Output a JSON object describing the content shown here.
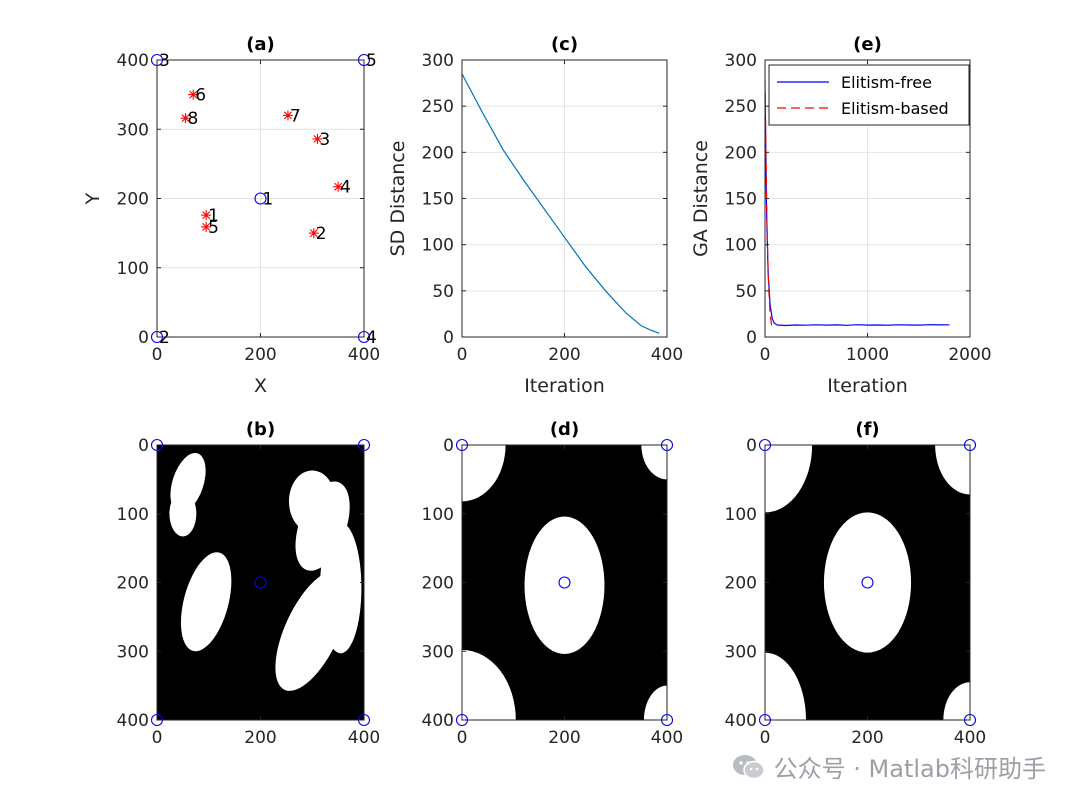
{
  "watermark": "公众号 · Matlab科研助手",
  "chart_data": [
    {
      "id": "a",
      "title": "(a)",
      "type": "scatter",
      "xlabel": "X",
      "ylabel": "Y",
      "xlim": [
        0,
        400
      ],
      "ylim": [
        0,
        400
      ],
      "xticks": [
        0,
        200,
        400
      ],
      "yticks": [
        0,
        100,
        200,
        300,
        400
      ],
      "grid": true,
      "series": [
        {
          "marker": "circle",
          "color": "#0000ff",
          "points": [
            {
              "x": 0,
              "y": 400,
              "label": "3"
            },
            {
              "x": 0,
              "y": 0,
              "label": "2"
            },
            {
              "x": 400,
              "y": 400,
              "label": "5"
            },
            {
              "x": 400,
              "y": 0,
              "label": "4"
            },
            {
              "x": 200,
              "y": 200,
              "label": "1"
            }
          ]
        },
        {
          "marker": "asterisk",
          "color": "#ff0000",
          "points": [
            {
              "x": 70,
              "y": 350,
              "label": "6"
            },
            {
              "x": 55,
              "y": 316,
              "label": "8"
            },
            {
              "x": 253,
              "y": 320,
              "label": "7"
            },
            {
              "x": 310,
              "y": 286,
              "label": "3"
            },
            {
              "x": 350,
              "y": 217,
              "label": "4"
            },
            {
              "x": 95,
              "y": 176,
              "label": "1"
            },
            {
              "x": 95,
              "y": 159,
              "label": "5"
            },
            {
              "x": 303,
              "y": 150,
              "label": "2"
            }
          ]
        }
      ]
    },
    {
      "id": "c",
      "title": "(c)",
      "type": "line",
      "xlabel": "Iteration",
      "ylabel": "SD Distance",
      "xlim": [
        0,
        400
      ],
      "ylim": [
        0,
        300
      ],
      "xticks": [
        0,
        200,
        400
      ],
      "yticks": [
        0,
        50,
        100,
        150,
        200,
        250,
        300
      ],
      "grid": true,
      "series": [
        {
          "color": "#0072bd",
          "x": [
            0,
            40,
            80,
            120,
            160,
            200,
            240,
            280,
            320,
            350,
            370,
            385
          ],
          "y": [
            285,
            243,
            203,
            170,
            139,
            108,
            77,
            50,
            26,
            12,
            7,
            4
          ]
        }
      ]
    },
    {
      "id": "e",
      "title": "(e)",
      "type": "line",
      "xlabel": "Iteration",
      "ylabel": "GA Distance",
      "xlim": [
        0,
        2000
      ],
      "ylim": [
        0,
        300
      ],
      "xticks": [
        0,
        1000,
        2000
      ],
      "yticks": [
        0,
        50,
        100,
        150,
        200,
        250,
        300
      ],
      "grid": true,
      "legend": "top-left",
      "series": [
        {
          "name": "Elitism-free",
          "color": "#0000ff",
          "dash": "solid",
          "x": [
            0,
            5,
            15,
            30,
            50,
            70,
            90,
            120,
            200,
            300,
            400,
            500,
            600,
            700,
            800,
            900,
            1000,
            1100,
            1200,
            1300,
            1400,
            1500,
            1600,
            1700,
            1800
          ],
          "y": [
            270,
            230,
            140,
            70,
            35,
            20,
            15,
            13,
            12.5,
            13,
            12.8,
            13.2,
            12.9,
            13.1,
            12.7,
            13.3,
            12.9,
            13.0,
            12.8,
            13.2,
            13.0,
            12.9,
            13.3,
            13.1,
            13.2
          ]
        },
        {
          "name": "Elitism-based",
          "color": "#ff0000",
          "dash": "dashed",
          "x": [
            0,
            10,
            20,
            35,
            50,
            65,
            80
          ],
          "y": [
            280,
            200,
            120,
            55,
            25,
            12,
            8
          ]
        }
      ]
    },
    {
      "id": "b",
      "title": "(b)",
      "type": "heatmap",
      "xlim": [
        0,
        400
      ],
      "ylim": [
        0,
        400
      ],
      "yreversed": true,
      "xticks": [
        0,
        200,
        400
      ],
      "yticks": [
        0,
        100,
        200,
        300,
        400
      ],
      "background": "#000000",
      "region_color": "#ffffff",
      "regions": [
        {
          "cx": 60,
          "cy": 55,
          "rx": 30,
          "ry": 45,
          "rot": 18
        },
        {
          "cx": 50,
          "cy": 100,
          "rx": 26,
          "ry": 33,
          "rot": 0
        },
        {
          "cx": 95,
          "cy": 228,
          "rx": 43,
          "ry": 74,
          "rot": 15
        },
        {
          "cx": 300,
          "cy": 82,
          "rx": 45,
          "ry": 45,
          "rot": 0
        },
        {
          "cx": 320,
          "cy": 118,
          "rx": 45,
          "ry": 68,
          "rot": 20
        },
        {
          "cx": 300,
          "cy": 270,
          "rx": 52,
          "ry": 95,
          "rot": 25
        },
        {
          "cx": 355,
          "cy": 208,
          "rx": 40,
          "ry": 95,
          "rot": 0
        }
      ],
      "markers": [
        {
          "x": 0,
          "y": 0
        },
        {
          "x": 400,
          "y": 0
        },
        {
          "x": 200,
          "y": 200
        },
        {
          "x": 0,
          "y": 400
        },
        {
          "x": 400,
          "y": 400
        }
      ]
    },
    {
      "id": "d",
      "title": "(d)",
      "type": "heatmap",
      "xlim": [
        0,
        400
      ],
      "ylim": [
        0,
        400
      ],
      "yreversed": true,
      "xticks": [
        0,
        200,
        400
      ],
      "yticks": [
        0,
        100,
        200,
        300,
        400
      ],
      "background": "#000000",
      "region_color": "#ffffff",
      "regions": [
        {
          "cx": 200,
          "cy": 204,
          "rx": 78,
          "ry": 100,
          "rot": 0
        },
        {
          "cx": 0,
          "cy": 0,
          "rx": 85,
          "ry": 82,
          "rot": 0
        },
        {
          "cx": 400,
          "cy": 0,
          "rx": 50,
          "ry": 50,
          "rot": 0
        },
        {
          "cx": 0,
          "cy": 400,
          "rx": 105,
          "ry": 102,
          "rot": 0
        },
        {
          "cx": 400,
          "cy": 400,
          "rx": 45,
          "ry": 50,
          "rot": 0
        }
      ],
      "markers": [
        {
          "x": 0,
          "y": 0
        },
        {
          "x": 400,
          "y": 0
        },
        {
          "x": 200,
          "y": 200
        },
        {
          "x": 0,
          "y": 400
        },
        {
          "x": 400,
          "y": 400
        }
      ]
    },
    {
      "id": "f",
      "title": "(f)",
      "type": "heatmap",
      "xlim": [
        0,
        400
      ],
      "ylim": [
        0,
        400
      ],
      "yreversed": true,
      "xticks": [
        0,
        200,
        400
      ],
      "yticks": [
        0,
        100,
        200,
        300,
        400
      ],
      "background": "#000000",
      "region_color": "#ffffff",
      "regions": [
        {
          "cx": 200,
          "cy": 200,
          "rx": 85,
          "ry": 102,
          "rot": 0
        },
        {
          "cx": 0,
          "cy": 0,
          "rx": 92,
          "ry": 98,
          "rot": 0
        },
        {
          "cx": 400,
          "cy": 0,
          "rx": 68,
          "ry": 72,
          "rot": 0
        },
        {
          "cx": 0,
          "cy": 400,
          "rx": 80,
          "ry": 98,
          "rot": 0
        },
        {
          "cx": 400,
          "cy": 400,
          "rx": 52,
          "ry": 55,
          "rot": 0
        }
      ],
      "markers": [
        {
          "x": 0,
          "y": 0
        },
        {
          "x": 400,
          "y": 0
        },
        {
          "x": 200,
          "y": 200
        },
        {
          "x": 0,
          "y": 400
        },
        {
          "x": 400,
          "y": 400
        }
      ]
    }
  ]
}
